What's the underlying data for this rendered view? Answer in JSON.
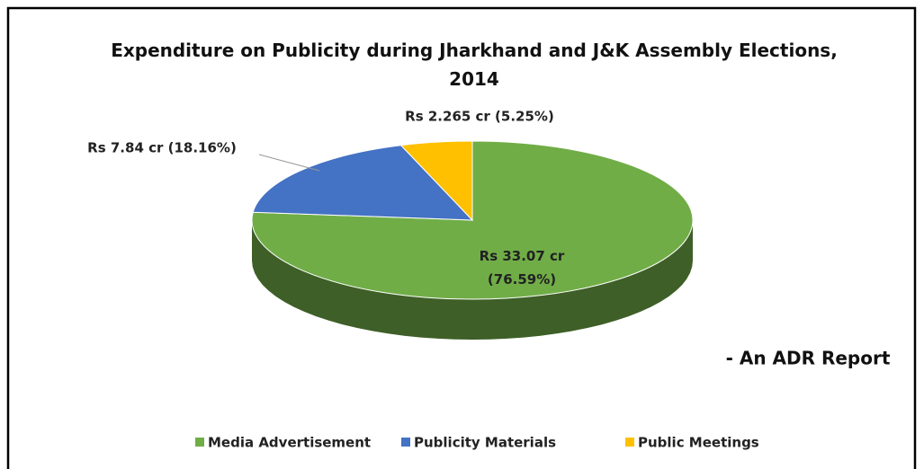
{
  "chart_data": {
    "type": "pie",
    "title": "Expenditure on Publicity during Jharkhand and J&K Assembly Elections, 2014",
    "categories": [
      "Media Advertisement",
      "Publicity Materials",
      "Public Meetings"
    ],
    "values": [
      33.07,
      7.84,
      2.265
    ],
    "value_labels": [
      "Rs 33.07 cr (76.59%)",
      "Rs 7.84 cr (18.16%)",
      "Rs 2.265 cr (5.25%)"
    ],
    "colors": [
      "#70ad47",
      "#4472c4",
      "#ffc000"
    ],
    "annotation": "- An ADR Report",
    "legend": "bottom"
  }
}
